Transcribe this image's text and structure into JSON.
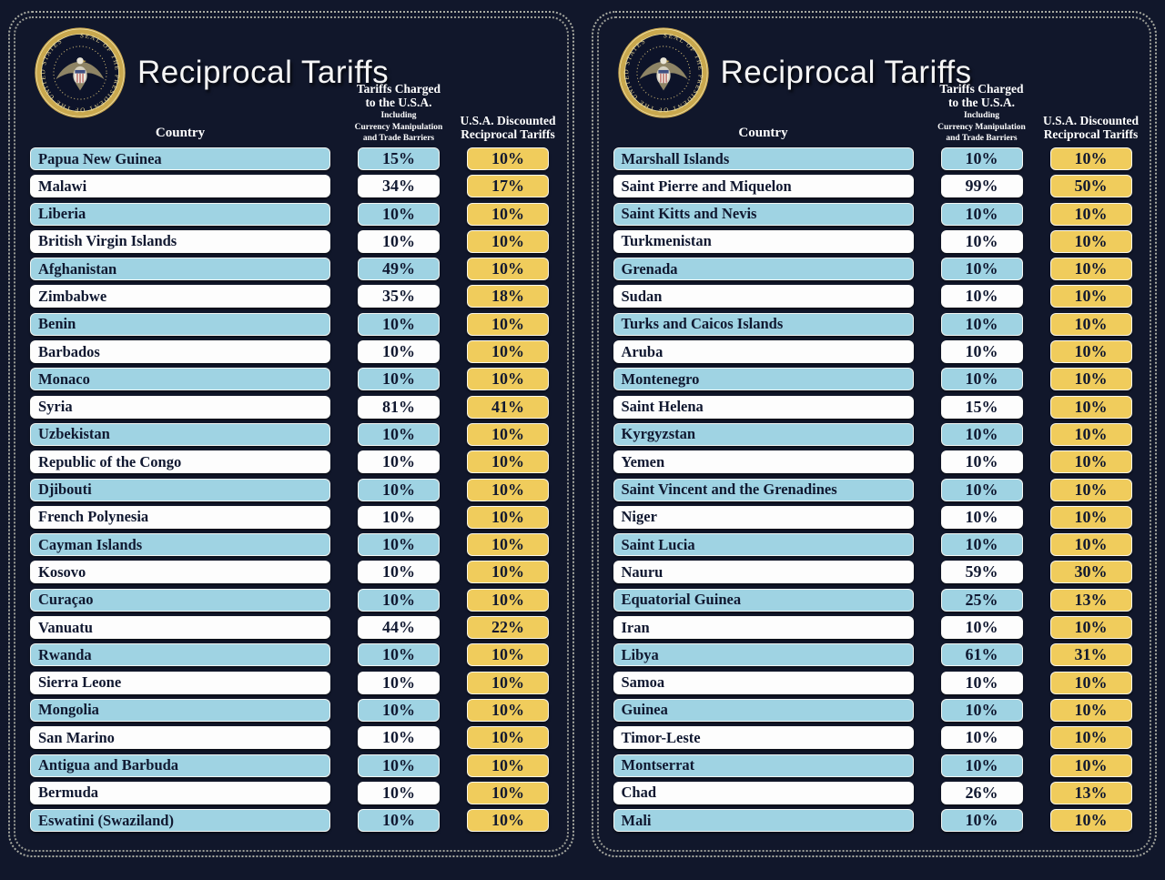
{
  "title": "Reciprocal Tariffs",
  "columns": {
    "country": "Country",
    "charged_line1": "Tariffs Charged",
    "charged_line2": "to the U.S.A.",
    "charged_sub1": "Including",
    "charged_sub2": "Currency Manipulation",
    "charged_sub3": "and Trade Barriers",
    "discounted_line1": "U.S.A. Discounted",
    "discounted_line2": "Reciprocal Tariffs"
  },
  "seal": {
    "text": "SEAL OF THE PRESIDENT OF THE UNITED STATES"
  },
  "colors": {
    "background": "#11172b",
    "row_blue": "#9fd3e3",
    "row_white": "#fdfdfd",
    "discount_gold": "#f0cc5c",
    "text_dark": "#101830",
    "border_dots": "#a9aba2",
    "seal_gold": "#c9a84e"
  },
  "chart_data": [
    {
      "type": "table",
      "title": "Reciprocal Tariffs",
      "columns": [
        "Country",
        "Tariffs Charged to the U.S.A. Including Currency Manipulation and Trade Barriers",
        "U.S.A. Discounted Reciprocal Tariffs"
      ],
      "rows": [
        [
          "Papua New Guinea",
          "15%",
          "10%"
        ],
        [
          "Malawi",
          "34%",
          "17%"
        ],
        [
          "Liberia",
          "10%",
          "10%"
        ],
        [
          "British Virgin Islands",
          "10%",
          "10%"
        ],
        [
          "Afghanistan",
          "49%",
          "10%"
        ],
        [
          "Zimbabwe",
          "35%",
          "18%"
        ],
        [
          "Benin",
          "10%",
          "10%"
        ],
        [
          "Barbados",
          "10%",
          "10%"
        ],
        [
          "Monaco",
          "10%",
          "10%"
        ],
        [
          "Syria",
          "81%",
          "41%"
        ],
        [
          "Uzbekistan",
          "10%",
          "10%"
        ],
        [
          "Republic of the Congo",
          "10%",
          "10%"
        ],
        [
          "Djibouti",
          "10%",
          "10%"
        ],
        [
          "French Polynesia",
          "10%",
          "10%"
        ],
        [
          "Cayman Islands",
          "10%",
          "10%"
        ],
        [
          "Kosovo",
          "10%",
          "10%"
        ],
        [
          "Curaçao",
          "10%",
          "10%"
        ],
        [
          "Vanuatu",
          "44%",
          "22%"
        ],
        [
          "Rwanda",
          "10%",
          "10%"
        ],
        [
          "Sierra Leone",
          "10%",
          "10%"
        ],
        [
          "Mongolia",
          "10%",
          "10%"
        ],
        [
          "San Marino",
          "10%",
          "10%"
        ],
        [
          "Antigua and Barbuda",
          "10%",
          "10%"
        ],
        [
          "Bermuda",
          "10%",
          "10%"
        ],
        [
          "Eswatini (Swaziland)",
          "10%",
          "10%"
        ]
      ]
    },
    {
      "type": "table",
      "title": "Reciprocal Tariffs",
      "columns": [
        "Country",
        "Tariffs Charged to the U.S.A. Including Currency Manipulation and Trade Barriers",
        "U.S.A. Discounted Reciprocal Tariffs"
      ],
      "rows": [
        [
          "Marshall Islands",
          "10%",
          "10%"
        ],
        [
          "Saint Pierre and Miquelon",
          "99%",
          "50%"
        ],
        [
          "Saint Kitts and Nevis",
          "10%",
          "10%"
        ],
        [
          "Turkmenistan",
          "10%",
          "10%"
        ],
        [
          "Grenada",
          "10%",
          "10%"
        ],
        [
          "Sudan",
          "10%",
          "10%"
        ],
        [
          "Turks and Caicos Islands",
          "10%",
          "10%"
        ],
        [
          "Aruba",
          "10%",
          "10%"
        ],
        [
          "Montenegro",
          "10%",
          "10%"
        ],
        [
          "Saint Helena",
          "15%",
          "10%"
        ],
        [
          "Kyrgyzstan",
          "10%",
          "10%"
        ],
        [
          "Yemen",
          "10%",
          "10%"
        ],
        [
          "Saint Vincent and the Grenadines",
          "10%",
          "10%"
        ],
        [
          "Niger",
          "10%",
          "10%"
        ],
        [
          "Saint Lucia",
          "10%",
          "10%"
        ],
        [
          "Nauru",
          "59%",
          "30%"
        ],
        [
          "Equatorial Guinea",
          "25%",
          "13%"
        ],
        [
          "Iran",
          "10%",
          "10%"
        ],
        [
          "Libya",
          "61%",
          "31%"
        ],
        [
          "Samoa",
          "10%",
          "10%"
        ],
        [
          "Guinea",
          "10%",
          "10%"
        ],
        [
          "Timor-Leste",
          "10%",
          "10%"
        ],
        [
          "Montserrat",
          "10%",
          "10%"
        ],
        [
          "Chad",
          "26%",
          "13%"
        ],
        [
          "Mali",
          "10%",
          "10%"
        ]
      ]
    }
  ]
}
